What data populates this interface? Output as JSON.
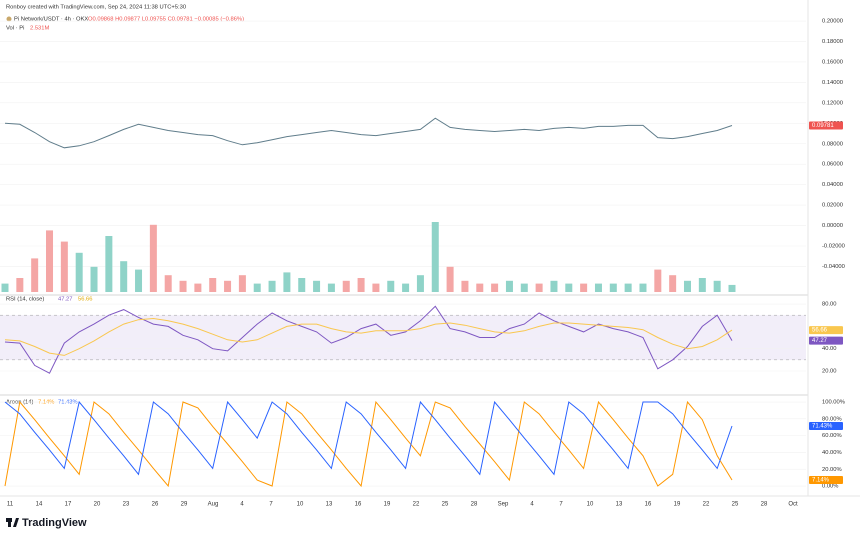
{
  "header": {
    "attribution": "Ronboy created with TradingView.com, Sep 24, 2024 11:38 UTC+5:30",
    "symbol": "Pi Network/USDT · 4h · OKX",
    "ohlc": "O0.09868 H0.09877 L0.09755 C0.09781 −0.00085 (−0.86%)",
    "volume_title": "Vol · Pi"
  },
  "chart_data": [
    {
      "type": "line",
      "ylim": [
        -0.065,
        0.203
      ],
      "yticks": [
        {
          "value": 0.2,
          "label": "0.20000"
        },
        {
          "value": 0.18,
          "label": "0.18000"
        },
        {
          "value": 0.16,
          "label": "0.16000"
        },
        {
          "value": 0.14,
          "label": "0.14000"
        },
        {
          "value": 0.12,
          "label": "0.12000"
        },
        {
          "value": 0.1,
          "label": "0.10000"
        },
        {
          "value": 0.08,
          "label": "0.08000"
        },
        {
          "value": 0.06,
          "label": "0.06000"
        },
        {
          "value": 0.04,
          "label": "0.04000"
        },
        {
          "value": 0.02,
          "label": "0.02000"
        },
        {
          "value": 0,
          "label": "0.00000"
        },
        {
          "value": -0.02,
          "label": "-0.02000"
        },
        {
          "value": -0.04,
          "label": "-0.04000"
        }
      ],
      "grid": true,
      "series": [
        {
          "color": "#607d8b",
          "label_color": "#ef5350",
          "values": [
            0.1,
            0.099,
            0.091,
            0.082,
            0.076,
            0.078,
            0.082,
            0.088,
            0.094,
            0.099,
            0.096,
            0.093,
            0.091,
            0.089,
            0.088,
            0.083,
            0.079,
            0.081,
            0.084,
            0.087,
            0.089,
            0.091,
            0.093,
            0.091,
            0.089,
            0.088,
            0.09,
            0.092,
            0.094,
            0.105,
            0.096,
            0.094,
            0.093,
            0.092,
            0.093,
            0.094,
            0.093,
            0.095,
            0.096,
            0.095,
            0.097,
            0.097,
            0.098,
            0.098,
            0.086,
            0.085,
            0.087,
            0.09,
            0.093,
            0.09781
          ]
        }
      ],
      "volume": {
        "up_color": "#8fd3c8",
        "down_color": "#f4a6a5",
        "values": [
          3,
          5,
          12,
          22,
          18,
          14,
          9,
          20,
          11,
          8,
          24,
          6,
          4,
          3,
          5,
          4,
          6,
          3,
          4,
          7,
          5,
          4,
          3,
          4,
          5,
          3,
          4,
          3,
          6,
          25,
          9,
          4,
          3,
          3,
          4,
          3,
          3,
          4,
          3,
          3,
          3,
          3,
          3,
          3,
          8,
          6,
          4,
          5,
          4,
          2.531
        ],
        "last_label": "2.531M"
      }
    },
    {
      "type": "line",
      "title": "RSI (14, close)",
      "ylim": [
        1.2,
        85.4
      ],
      "yticks": [
        {
          "value": 80,
          "label": "80.00"
        },
        {
          "value": 40,
          "label": "40.00"
        },
        {
          "value": 20,
          "label": "20.00"
        }
      ],
      "band": [
        30,
        70
      ],
      "band_color": "#7e57c2",
      "grid": true,
      "series": [
        {
          "color": "#7e57c2",
          "values": [
            46,
            45,
            25,
            18,
            45,
            55,
            62,
            70,
            75,
            68,
            62,
            60,
            52,
            48,
            40,
            38,
            50,
            62,
            72,
            65,
            60,
            55,
            45,
            50,
            58,
            62,
            52,
            55,
            65,
            78,
            58,
            55,
            50,
            50,
            58,
            62,
            72,
            65,
            60,
            55,
            62,
            58,
            55,
            50,
            22,
            30,
            42,
            60,
            70,
            47.27
          ]
        },
        {
          "color": "#f9c74f",
          "values": [
            48,
            47,
            42,
            36,
            34,
            40,
            47,
            55,
            62,
            66,
            67,
            65,
            62,
            58,
            53,
            48,
            46,
            48,
            54,
            60,
            62,
            62,
            58,
            55,
            54,
            56,
            56,
            56,
            58,
            62,
            63,
            61,
            58,
            55,
            54,
            56,
            60,
            63,
            63,
            62,
            61,
            60,
            59,
            57,
            50,
            44,
            40,
            42,
            48,
            56.66
          ]
        }
      ]
    },
    {
      "type": "line",
      "title": "Aroon (14)",
      "ylim": [
        -9.5,
        104.8
      ],
      "yticks": [
        {
          "value": 100,
          "label": "100.00%"
        },
        {
          "value": 80,
          "label": "80.00%"
        },
        {
          "value": 60,
          "label": "60.00%"
        },
        {
          "value": 40,
          "label": "40.00%"
        },
        {
          "value": 20,
          "label": "20.00%"
        },
        {
          "value": 0,
          "label": "0.00%"
        }
      ],
      "grid": true,
      "series": [
        {
          "color": "#ff9800",
          "last_label": "7.14%",
          "values": [
            0,
            100,
            79,
            57,
            36,
            14,
            100,
            86,
            64,
            43,
            21,
            0,
            100,
            93,
            71,
            50,
            29,
            7,
            0,
            100,
            86,
            64,
            43,
            21,
            0,
            100,
            79,
            57,
            36,
            100,
            93,
            71,
            50,
            29,
            7,
            100,
            86,
            64,
            43,
            21,
            100,
            79,
            57,
            36,
            0,
            14,
            100,
            79,
            36,
            7.14
          ]
        },
        {
          "color": "#2962ff",
          "last_label": "71.43%",
          "values": [
            100,
            86,
            64,
            43,
            21,
            100,
            79,
            57,
            36,
            14,
            100,
            86,
            64,
            43,
            21,
            100,
            79,
            57,
            100,
            86,
            64,
            43,
            21,
            100,
            86,
            64,
            43,
            21,
            100,
            79,
            57,
            36,
            14,
            100,
            79,
            57,
            36,
            14,
            100,
            86,
            64,
            43,
            21,
            100,
            100,
            86,
            64,
            43,
            21,
            71.43
          ]
        }
      ]
    }
  ],
  "x_axis": {
    "labels": [
      "11",
      "14",
      "17",
      "20",
      "23",
      "26",
      "29",
      "Aug",
      "4",
      "7",
      "10",
      "13",
      "16",
      "19",
      "22",
      "25",
      "28",
      "Sep",
      "4",
      "7",
      "10",
      "13",
      "16",
      "19",
      "22",
      "25",
      "28",
      "Oct"
    ]
  },
  "footer": {
    "brand": "TradingView"
  }
}
